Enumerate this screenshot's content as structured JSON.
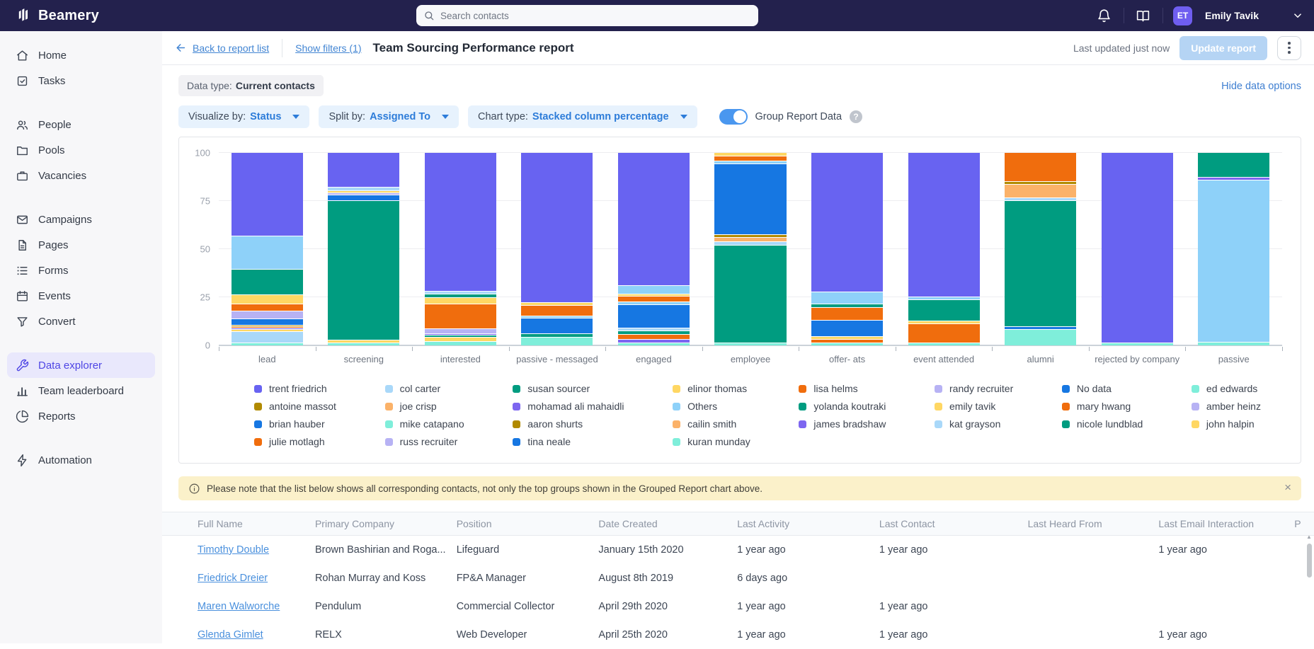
{
  "colors": {
    "topbar_bg": "#23214d",
    "accent_purple": "#4f46e5",
    "link_blue": "#4285d3",
    "toggle_on": "#4a97ef",
    "notice_bg": "#fbf1ca",
    "update_button_bg": "#b5d4f4"
  },
  "topbar": {
    "brand": "Beamery",
    "search_placeholder": "Search contacts",
    "user": {
      "initials": "ET",
      "name": "Emily Tavik"
    }
  },
  "sidebar": {
    "groups": [
      {
        "items": [
          {
            "label": "Home",
            "icon": "home"
          },
          {
            "label": "Tasks",
            "icon": "tasks"
          }
        ]
      },
      {
        "items": [
          {
            "label": "People",
            "icon": "users"
          },
          {
            "label": "Pools",
            "icon": "folder"
          },
          {
            "label": "Vacancies",
            "icon": "briefcase"
          }
        ]
      },
      {
        "items": [
          {
            "label": "Campaigns",
            "icon": "mail"
          },
          {
            "label": "Pages",
            "icon": "page"
          },
          {
            "label": "Forms",
            "icon": "list"
          },
          {
            "label": "Events",
            "icon": "calendar"
          },
          {
            "label": "Convert",
            "icon": "funnel"
          }
        ]
      },
      {
        "items": [
          {
            "label": "Data explorer",
            "icon": "wrench",
            "active": true
          },
          {
            "label": "Team leaderboard",
            "icon": "colchart"
          },
          {
            "label": "Reports",
            "icon": "pie"
          }
        ]
      },
      {
        "items": [
          {
            "label": "Automation",
            "icon": "bolt"
          }
        ]
      }
    ]
  },
  "header": {
    "back_label": "Back to report list",
    "filters_label": "Show filters (1)",
    "title": "Team Sourcing Performance report",
    "updated_text": "Last updated just now",
    "update_button": "Update report"
  },
  "options": {
    "data_type_label": "Data type:",
    "data_type_value": "Current contacts",
    "hide_link": "Hide data options",
    "controls": [
      {
        "label": "Visualize by:",
        "value": "Status"
      },
      {
        "label": "Split by:",
        "value": "Assigned To"
      },
      {
        "label": "Chart type:",
        "value": "Stacked column percentage"
      }
    ],
    "toggle_label": "Group Report Data",
    "help_icon": "?"
  },
  "chart_data": {
    "type": "bar",
    "subtype": "stacked-column-percentage",
    "ylim": [
      0,
      100
    ],
    "y_ticks": [
      0,
      25,
      50,
      75,
      100
    ],
    "grid": true,
    "legend_position": "bottom",
    "palette": {
      "indigo": "#6863f1",
      "midpurple": "#7d66f0",
      "blue": "#1677e2",
      "skyblue": "#8ed1f9",
      "babyblue": "#a9d8f9",
      "green": "#009c80",
      "mint": "#7feeda",
      "yellow": "#ffd763",
      "orange": "#f06d0d",
      "peach": "#fbb269",
      "lavender": "#b7b2f4",
      "olive": "#b18a00"
    },
    "categories": [
      "lead",
      "screening",
      "interested",
      "passive - messaged",
      "engaged",
      "employee",
      "offer- ats",
      "event attended",
      "alumni",
      "rejected by company",
      "passive"
    ],
    "bars": [
      {
        "category": "lead",
        "segments": [
          [
            "mint",
            1
          ],
          [
            "babyblue",
            6
          ],
          [
            "yellow",
            1
          ],
          [
            "midpurple",
            0.8
          ],
          [
            "orange",
            0.8
          ],
          [
            "olive",
            0.8
          ],
          [
            "blue",
            3.3
          ],
          [
            "lavender",
            4
          ],
          [
            "orange",
            3.8
          ],
          [
            "yellow",
            4.5
          ],
          [
            "green",
            13.5
          ],
          [
            "skyblue",
            17
          ],
          [
            "indigo",
            43.5
          ]
        ]
      },
      {
        "category": "screening",
        "segments": [
          [
            "mint",
            1
          ],
          [
            "yellow",
            1.5
          ],
          [
            "green",
            72.5
          ],
          [
            "blue",
            3
          ],
          [
            "lavender",
            1
          ],
          [
            "yellow",
            1
          ],
          [
            "babyblue",
            2
          ],
          [
            "indigo",
            18
          ]
        ]
      },
      {
        "category": "interested",
        "segments": [
          [
            "mint",
            2
          ],
          [
            "yellow",
            2
          ],
          [
            "green",
            1
          ],
          [
            "midpurple",
            1
          ],
          [
            "lavender",
            2.5
          ],
          [
            "orange",
            13
          ],
          [
            "yellow",
            3
          ],
          [
            "green",
            2
          ],
          [
            "babyblue",
            1.5
          ],
          [
            "indigo",
            72
          ]
        ]
      },
      {
        "category": "passive - messaged",
        "segments": [
          [
            "mint",
            4
          ],
          [
            "green",
            2
          ],
          [
            "blue",
            8
          ],
          [
            "skyblue",
            1
          ],
          [
            "orange",
            5.5
          ],
          [
            "yellow",
            1.5
          ],
          [
            "indigo",
            78
          ]
        ]
      },
      {
        "category": "engaged",
        "segments": [
          [
            "mint",
            1
          ],
          [
            "midpurple",
            2
          ],
          [
            "orange",
            2.5
          ],
          [
            "green",
            2
          ],
          [
            "babyblue",
            1.5
          ],
          [
            "blue",
            12
          ],
          [
            "skyblue",
            1.5
          ],
          [
            "orange",
            3
          ],
          [
            "yellow",
            1
          ],
          [
            "skyblue",
            4.5
          ],
          [
            "indigo",
            69
          ]
        ]
      },
      {
        "category": "employee",
        "segments": [
          [
            "mint",
            1
          ],
          [
            "green",
            51
          ],
          [
            "babyblue",
            1.5
          ],
          [
            "peach",
            2.5
          ],
          [
            "olive",
            1.2
          ],
          [
            "blue",
            36.8
          ],
          [
            "skyblue",
            1.5
          ],
          [
            "orange",
            2.5
          ],
          [
            "yellow",
            2
          ]
        ]
      },
      {
        "category": "offer- ats",
        "segments": [
          [
            "mint",
            1
          ],
          [
            "orange",
            2
          ],
          [
            "yellow",
            1.5
          ],
          [
            "blue",
            8.5
          ],
          [
            "orange",
            6.5
          ],
          [
            "green",
            2
          ],
          [
            "skyblue",
            6
          ],
          [
            "indigo",
            72.5
          ]
        ]
      },
      {
        "category": "event attended",
        "segments": [
          [
            "mint",
            1
          ],
          [
            "orange",
            10
          ],
          [
            "yellow",
            1.5
          ],
          [
            "green",
            11
          ],
          [
            "skyblue",
            1.5
          ],
          [
            "indigo",
            75
          ]
        ]
      },
      {
        "category": "alumni",
        "segments": [
          [
            "mint",
            8
          ],
          [
            "blue",
            1.5
          ],
          [
            "green",
            65.5
          ],
          [
            "babyblue",
            1.5
          ],
          [
            "peach",
            7
          ],
          [
            "olive",
            1.5
          ],
          [
            "orange",
            15
          ]
        ]
      },
      {
        "category": "rejected by company",
        "segments": [
          [
            "mint",
            1
          ],
          [
            "indigo",
            99
          ]
        ]
      },
      {
        "category": "passive",
        "segments": [
          [
            "mint",
            1.5
          ],
          [
            "skyblue",
            84
          ],
          [
            "midpurple",
            1.5
          ],
          [
            "green",
            13
          ]
        ]
      }
    ],
    "legend_columns": [
      [
        [
          "trent friedrich",
          "indigo"
        ],
        [
          "antoine massot",
          "olive"
        ],
        [
          "brian hauber",
          "blue"
        ],
        [
          "julie motlagh",
          "orange"
        ]
      ],
      [
        [
          "col carter",
          "babyblue"
        ],
        [
          "joe crisp",
          "peach"
        ],
        [
          "mike catapano",
          "mint"
        ],
        [
          "russ recruiter",
          "lavender"
        ]
      ],
      [
        [
          "susan sourcer",
          "green"
        ],
        [
          "mohamad ali mahaidli",
          "midpurple"
        ],
        [
          "aaron shurts",
          "olive"
        ],
        [
          "tina neale",
          "blue"
        ]
      ],
      [
        [
          "elinor thomas",
          "yellow"
        ],
        [
          "Others",
          "skyblue"
        ],
        [
          "cailin smith",
          "peach"
        ],
        [
          "kuran munday",
          "mint"
        ]
      ],
      [
        [
          "lisa helms",
          "orange"
        ],
        [
          "yolanda koutraki",
          "green"
        ],
        [
          "james bradshaw",
          "midpurple"
        ]
      ],
      [
        [
          "randy recruiter",
          "lavender"
        ],
        [
          "emily tavik",
          "yellow"
        ],
        [
          "kat grayson",
          "babyblue"
        ]
      ],
      [
        [
          "No data",
          "blue"
        ],
        [
          "mary hwang",
          "orange"
        ],
        [
          "nicole lundblad",
          "green"
        ]
      ],
      [
        [
          "ed edwards",
          "mint"
        ],
        [
          "amber heinz",
          "lavender"
        ],
        [
          "john halpin",
          "yellow"
        ]
      ]
    ]
  },
  "notice": {
    "text": "Please note that the list below shows all corresponding contacts, not only the top groups shown in the Grouped Report chart above.",
    "close": "×"
  },
  "table": {
    "columns": [
      "Full Name",
      "Primary Company",
      "Position",
      "Date Created",
      "Last Activity",
      "Last Contact",
      "Last Heard From",
      "Last Email Interaction",
      "P"
    ],
    "rows": [
      {
        "name": "Timothy Double",
        "cells": [
          "Brown Bashirian and Roga...",
          "Lifeguard",
          "January 15th 2020",
          "1 year ago",
          "1 year ago",
          "",
          "1 year ago",
          ""
        ]
      },
      {
        "name": "Friedrick Dreier",
        "cells": [
          "Rohan Murray and Koss",
          "FP&A Manager",
          "August 8th 2019",
          "6 days ago",
          "",
          "",
          "",
          ""
        ]
      },
      {
        "name": "Maren Walworche",
        "cells": [
          "Pendulum",
          "Commercial Collector",
          "April 29th 2020",
          "1 year ago",
          "1 year ago",
          "",
          "",
          ""
        ]
      },
      {
        "name": "Glenda Gimlet",
        "cells": [
          "RELX",
          "Web Developer",
          "April 25th 2020",
          "1 year ago",
          "1 year ago",
          "",
          "1 year ago",
          ""
        ]
      }
    ]
  }
}
